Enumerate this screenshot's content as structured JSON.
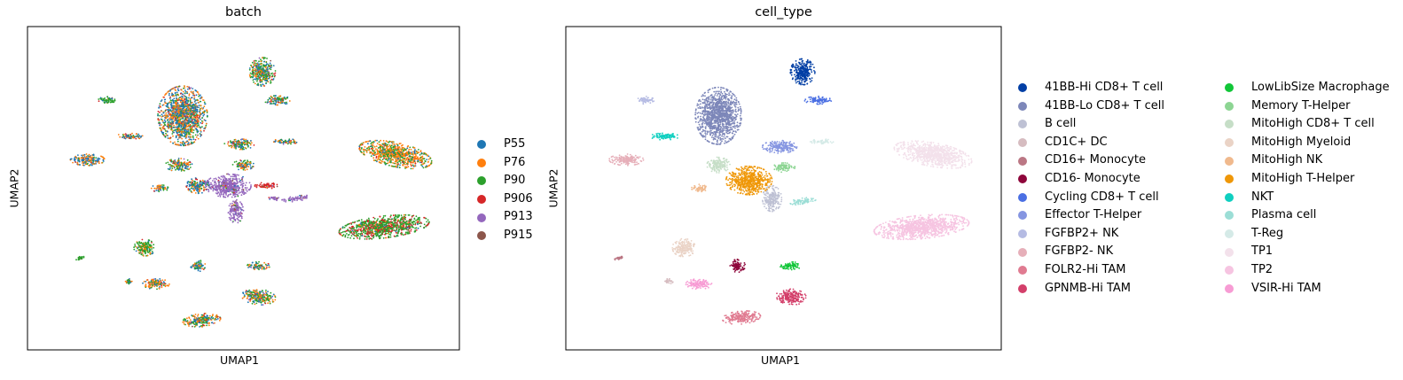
{
  "chart_data": [
    {
      "type": "scatter",
      "title": "batch",
      "xlabel": "UMAP1",
      "ylabel": "UMAP2",
      "xlim": [
        0,
        10
      ],
      "ylim": [
        0,
        10
      ],
      "grid": false,
      "ticks": false,
      "legend_placement": "right",
      "categories": [
        {
          "name": "P55",
          "color": "#1f77b4"
        },
        {
          "name": "P76",
          "color": "#ff7f0e"
        },
        {
          "name": "P90",
          "color": "#2ca02c"
        },
        {
          "name": "P906",
          "color": "#d62728"
        },
        {
          "name": "P913",
          "color": "#9467bd"
        },
        {
          "name": "P915",
          "color": "#8c564b"
        }
      ],
      "clusters": [
        {
          "cx": 5.5,
          "cy": 9.0,
          "rx": 0.34,
          "ry": 0.55,
          "mix": [
            0.25,
            0.2,
            0.45,
            0.05,
            0.03,
            0.02
          ]
        },
        {
          "cx": 5.9,
          "cy": 7.9,
          "rx": 0.35,
          "ry": 0.18,
          "mix": [
            0.3,
            0.25,
            0.35,
            0.05,
            0.03,
            0.02
          ]
        },
        {
          "cx": 1.4,
          "cy": 7.9,
          "rx": 0.22,
          "ry": 0.15,
          "mix": [
            0.1,
            0.1,
            0.75,
            0.03,
            0.0,
            0.02
          ]
        },
        {
          "cx": 3.4,
          "cy": 7.3,
          "rx": 0.65,
          "ry": 1.15,
          "mix": [
            0.4,
            0.3,
            0.2,
            0.06,
            0.02,
            0.02
          ]
        },
        {
          "cx": 2.0,
          "cy": 6.5,
          "rx": 0.35,
          "ry": 0.12,
          "mix": [
            0.35,
            0.4,
            0.15,
            0.05,
            0.03,
            0.02
          ]
        },
        {
          "cx": 4.9,
          "cy": 6.2,
          "rx": 0.4,
          "ry": 0.2,
          "mix": [
            0.3,
            0.3,
            0.3,
            0.05,
            0.03,
            0.02
          ]
        },
        {
          "cx": 6.1,
          "cy": 6.3,
          "rx": 0.32,
          "ry": 0.12,
          "mix": [
            0.25,
            0.35,
            0.3,
            0.05,
            0.03,
            0.02
          ]
        },
        {
          "cx": 9.0,
          "cy": 5.8,
          "rx": 1.0,
          "ry": 0.45,
          "rot": -0.35,
          "mix": [
            0.1,
            0.55,
            0.3,
            0.05,
            0.0,
            0.0
          ]
        },
        {
          "cx": 0.9,
          "cy": 5.6,
          "rx": 0.45,
          "ry": 0.22,
          "mix": [
            0.45,
            0.4,
            0.1,
            0.05,
            0.0,
            0.0
          ]
        },
        {
          "cx": 3.3,
          "cy": 5.4,
          "rx": 0.35,
          "ry": 0.25,
          "mix": [
            0.3,
            0.3,
            0.3,
            0.05,
            0.03,
            0.02
          ]
        },
        {
          "cx": 5.0,
          "cy": 5.4,
          "rx": 0.28,
          "ry": 0.2,
          "mix": [
            0.25,
            0.3,
            0.35,
            0.06,
            0.02,
            0.02
          ]
        },
        {
          "cx": 2.8,
          "cy": 4.5,
          "rx": 0.22,
          "ry": 0.15,
          "mix": [
            0.2,
            0.35,
            0.35,
            0.05,
            0.03,
            0.02
          ]
        },
        {
          "cx": 3.8,
          "cy": 4.6,
          "rx": 0.3,
          "ry": 0.3,
          "mix": [
            0.5,
            0.2,
            0.2,
            0.05,
            0.03,
            0.02
          ]
        },
        {
          "cx": 4.6,
          "cy": 4.6,
          "rx": 0.6,
          "ry": 0.45,
          "mix": [
            0.02,
            0.02,
            0.02,
            0.02,
            0.9,
            0.02
          ]
        },
        {
          "cx": 4.8,
          "cy": 3.6,
          "rx": 0.2,
          "ry": 0.45,
          "mix": [
            0.02,
            0.02,
            0.02,
            0.02,
            0.9,
            0.02
          ]
        },
        {
          "cx": 5.6,
          "cy": 4.6,
          "rx": 0.3,
          "ry": 0.12,
          "mix": [
            0.05,
            0.05,
            0.05,
            0.8,
            0.03,
            0.02
          ]
        },
        {
          "cx": 5.8,
          "cy": 4.1,
          "rx": 0.15,
          "ry": 0.08,
          "mix": [
            0.02,
            0.02,
            0.02,
            0.02,
            0.9,
            0.02
          ]
        },
        {
          "cx": 6.4,
          "cy": 4.1,
          "rx": 0.4,
          "ry": 0.1,
          "rot": 0.2,
          "mix": [
            0.02,
            0.02,
            0.02,
            0.02,
            0.9,
            0.02
          ]
        },
        {
          "cx": 8.7,
          "cy": 3.0,
          "rx": 1.2,
          "ry": 0.42,
          "rot": 0.18,
          "mix": [
            0.03,
            0.05,
            0.6,
            0.3,
            0.0,
            0.02
          ]
        },
        {
          "cx": 2.4,
          "cy": 2.2,
          "rx": 0.28,
          "ry": 0.32,
          "mix": [
            0.05,
            0.2,
            0.7,
            0.03,
            0.0,
            0.02
          ]
        },
        {
          "cx": 0.7,
          "cy": 1.8,
          "rx": 0.12,
          "ry": 0.05,
          "rot": 0.5,
          "mix": [
            0.0,
            0.0,
            0.9,
            0.05,
            0.0,
            0.05
          ]
        },
        {
          "cx": 3.8,
          "cy": 1.5,
          "rx": 0.2,
          "ry": 0.22,
          "mix": [
            0.4,
            0.2,
            0.3,
            0.05,
            0.03,
            0.02
          ]
        },
        {
          "cx": 5.4,
          "cy": 1.5,
          "rx": 0.3,
          "ry": 0.15,
          "mix": [
            0.3,
            0.2,
            0.4,
            0.05,
            0.03,
            0.02
          ]
        },
        {
          "cx": 2.0,
          "cy": 0.9,
          "rx": 0.1,
          "ry": 0.1,
          "mix": [
            0.2,
            0.3,
            0.4,
            0.05,
            0.03,
            0.02
          ]
        },
        {
          "cx": 2.7,
          "cy": 0.8,
          "rx": 0.35,
          "ry": 0.2,
          "mix": [
            0.2,
            0.5,
            0.2,
            0.05,
            0.03,
            0.02
          ]
        },
        {
          "cx": 5.4,
          "cy": 0.3,
          "rx": 0.45,
          "ry": 0.3,
          "rot": -0.2,
          "mix": [
            0.2,
            0.3,
            0.4,
            0.05,
            0.03,
            0.02
          ]
        },
        {
          "cx": 3.9,
          "cy": -0.6,
          "rx": 0.5,
          "ry": 0.25,
          "rot": 0.15,
          "mix": [
            0.25,
            0.35,
            0.3,
            0.05,
            0.03,
            0.02
          ]
        }
      ]
    },
    {
      "type": "scatter",
      "title": "cell_type",
      "xlabel": "UMAP1",
      "ylabel": "UMAP2",
      "xlim": [
        0,
        10
      ],
      "ylim": [
        0,
        10
      ],
      "grid": false,
      "ticks": false,
      "legend_placement": "right",
      "categories": [
        {
          "name": "41BB-Hi CD8+ T cell",
          "color": "#023fa5"
        },
        {
          "name": "41BB-Lo CD8+ T cell",
          "color": "#7d87b9"
        },
        {
          "name": "B cell",
          "color": "#bec1d4"
        },
        {
          "name": "CD1C+ DC",
          "color": "#d6bcc0"
        },
        {
          "name": "CD16+ Monocyte",
          "color": "#bb7784"
        },
        {
          "name": "CD16- Monocyte",
          "color": "#8e063b"
        },
        {
          "name": "Cycling CD8+ T cell",
          "color": "#4a6fe3"
        },
        {
          "name": "Effector T-Helper",
          "color": "#8595e1"
        },
        {
          "name": "FGFBP2+ NK",
          "color": "#b5bbe3"
        },
        {
          "name": "FGFBP2- NK",
          "color": "#e6afb9"
        },
        {
          "name": "FOLR2-Hi TAM",
          "color": "#e07b91"
        },
        {
          "name": "GPNMB-Hi TAM",
          "color": "#d33f6a"
        },
        {
          "name": "LowLibSize Macrophage",
          "color": "#11c638"
        },
        {
          "name": "Memory T-Helper",
          "color": "#8dd593"
        },
        {
          "name": "MitoHigh CD8+ T cell",
          "color": "#c6dec7"
        },
        {
          "name": "MitoHigh Myeloid",
          "color": "#ead3c6"
        },
        {
          "name": "MitoHigh NK",
          "color": "#f0b98d"
        },
        {
          "name": "MitoHigh T-Helper",
          "color": "#ef9708"
        },
        {
          "name": "NKT",
          "color": "#0fcfc0"
        },
        {
          "name": "Plasma cell",
          "color": "#9cded6"
        },
        {
          "name": "T-Reg",
          "color": "#d5eae7"
        },
        {
          "name": "TP1",
          "color": "#f3e1eb"
        },
        {
          "name": "TP2",
          "color": "#f6c4e1"
        },
        {
          "name": "VSIR-Hi TAM",
          "color": "#f79cd4"
        }
      ],
      "clusters": [
        {
          "cx": 5.5,
          "cy": 9.0,
          "rx": 0.32,
          "ry": 0.5,
          "cat": 0
        },
        {
          "cx": 5.9,
          "cy": 7.9,
          "rx": 0.35,
          "ry": 0.15,
          "cat": 6
        },
        {
          "cx": 1.4,
          "cy": 7.9,
          "rx": 0.22,
          "ry": 0.15,
          "cat": 8
        },
        {
          "cx": 3.3,
          "cy": 7.3,
          "rx": 0.6,
          "ry": 1.1,
          "cat": 1
        },
        {
          "cx": 1.9,
          "cy": 6.5,
          "rx": 0.38,
          "ry": 0.13,
          "cat": 18
        },
        {
          "cx": 4.9,
          "cy": 6.1,
          "rx": 0.45,
          "ry": 0.25,
          "cat": 7
        },
        {
          "cx": 6.0,
          "cy": 6.3,
          "rx": 0.3,
          "ry": 0.1,
          "cat": 20
        },
        {
          "cx": 8.9,
          "cy": 5.8,
          "rx": 1.05,
          "ry": 0.45,
          "rot": -0.3,
          "cat": 21
        },
        {
          "cx": 0.9,
          "cy": 5.6,
          "rx": 0.45,
          "ry": 0.22,
          "cat": 9
        },
        {
          "cx": 3.3,
          "cy": 5.4,
          "rx": 0.3,
          "ry": 0.3,
          "cat": 14
        },
        {
          "cx": 5.0,
          "cy": 5.3,
          "rx": 0.3,
          "ry": 0.18,
          "cat": 13
        },
        {
          "cx": 2.8,
          "cy": 4.5,
          "rx": 0.2,
          "ry": 0.15,
          "cat": 16
        },
        {
          "cx": 4.1,
          "cy": 4.8,
          "rx": 0.6,
          "ry": 0.55,
          "cat": 17
        },
        {
          "cx": 4.7,
          "cy": 4.1,
          "rx": 0.25,
          "ry": 0.5,
          "cat": 2
        },
        {
          "cx": 5.5,
          "cy": 4.0,
          "rx": 0.35,
          "ry": 0.12,
          "rot": 0.2,
          "cat": 19
        },
        {
          "cx": 8.6,
          "cy": 3.0,
          "rx": 1.25,
          "ry": 0.45,
          "rot": 0.15,
          "cat": 22
        },
        {
          "cx": 2.4,
          "cy": 2.2,
          "rx": 0.3,
          "ry": 0.35,
          "cat": 15
        },
        {
          "cx": 0.7,
          "cy": 1.8,
          "rx": 0.12,
          "ry": 0.05,
          "rot": 0.5,
          "cat": 4
        },
        {
          "cx": 3.8,
          "cy": 1.5,
          "rx": 0.2,
          "ry": 0.25,
          "cat": 5
        },
        {
          "cx": 5.2,
          "cy": 1.5,
          "rx": 0.3,
          "ry": 0.15,
          "cat": 12
        },
        {
          "cx": 2.0,
          "cy": 0.9,
          "rx": 0.12,
          "ry": 0.1,
          "cat": 3
        },
        {
          "cx": 2.8,
          "cy": 0.8,
          "rx": 0.35,
          "ry": 0.2,
          "cat": 23
        },
        {
          "cx": 5.2,
          "cy": 0.3,
          "rx": 0.4,
          "ry": 0.3,
          "rot": -0.2,
          "cat": 11
        },
        {
          "cx": 3.9,
          "cy": -0.5,
          "rx": 0.5,
          "ry": 0.25,
          "rot": 0.15,
          "cat": 10
        }
      ]
    }
  ]
}
